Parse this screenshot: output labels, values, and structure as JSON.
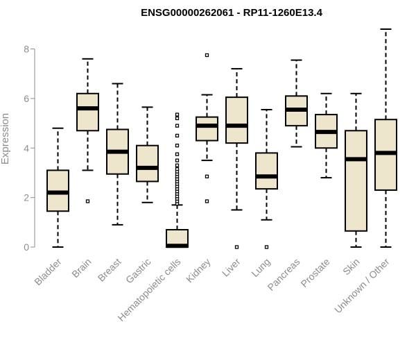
{
  "chart_data": {
    "type": "box",
    "title": "ENSG00000262061 - RP11-1260E13.4",
    "ylabel": "Expression",
    "xlabel": "",
    "ylim": [
      0,
      8.8
    ],
    "yticks": [
      0,
      2,
      4,
      6,
      8
    ],
    "grid": false,
    "colors": {
      "box_fill": "#ede6cc",
      "stroke": "#000000",
      "axis": "#8c8c8c"
    },
    "categories": [
      "Bladder",
      "Brain",
      "Breast",
      "Gastric",
      "Hematopoietic cells",
      "Kidney",
      "Liver",
      "Lung",
      "Pancreas",
      "Prostate",
      "Skin",
      "Unknown / Other"
    ],
    "boxes": [
      {
        "whisker_low": 0.0,
        "q1": 1.45,
        "median": 2.2,
        "q3": 3.1,
        "whisker_high": 4.8,
        "outliers": []
      },
      {
        "whisker_low": 3.1,
        "q1": 4.7,
        "median": 5.6,
        "q3": 6.2,
        "whisker_high": 7.6,
        "outliers": [
          1.85
        ]
      },
      {
        "whisker_low": 0.9,
        "q1": 2.95,
        "median": 3.85,
        "q3": 4.75,
        "whisker_high": 6.6,
        "outliers": []
      },
      {
        "whisker_low": 1.8,
        "q1": 2.65,
        "median": 3.2,
        "q3": 4.1,
        "whisker_high": 5.65,
        "outliers": []
      },
      {
        "whisker_low": 0.0,
        "q1": 0.0,
        "median": 0.05,
        "q3": 0.7,
        "whisker_high": 1.7,
        "outliers": [
          1.75,
          1.85,
          1.95,
          2.05,
          2.15,
          2.25,
          2.35,
          2.45,
          2.55,
          2.65,
          2.75,
          2.85,
          2.95,
          3.05,
          3.15,
          3.3,
          3.5,
          3.75,
          4.1,
          4.5,
          4.9,
          5.2,
          5.35
        ]
      },
      {
        "whisker_low": 3.5,
        "q1": 4.3,
        "median": 4.9,
        "q3": 5.25,
        "whisker_high": 6.15,
        "outliers": [
          1.85,
          2.85,
          7.75
        ]
      },
      {
        "whisker_low": 1.5,
        "q1": 4.2,
        "median": 4.9,
        "q3": 6.05,
        "whisker_high": 7.2,
        "outliers": [
          0.0
        ]
      },
      {
        "whisker_low": 1.1,
        "q1": 2.35,
        "median": 2.85,
        "q3": 3.8,
        "whisker_high": 5.55,
        "outliers": [
          0.0
        ]
      },
      {
        "whisker_low": 4.05,
        "q1": 4.9,
        "median": 5.55,
        "q3": 6.1,
        "whisker_high": 7.55,
        "outliers": []
      },
      {
        "whisker_low": 2.8,
        "q1": 4.0,
        "median": 4.65,
        "q3": 5.35,
        "whisker_high": 6.2,
        "outliers": []
      },
      {
        "whisker_low": 0.0,
        "q1": 0.65,
        "median": 3.55,
        "q3": 4.7,
        "whisker_high": 6.2,
        "outliers": []
      },
      {
        "whisker_low": 0.0,
        "q1": 2.3,
        "median": 3.8,
        "q3": 5.15,
        "whisker_high": 8.8,
        "outliers": []
      }
    ]
  }
}
